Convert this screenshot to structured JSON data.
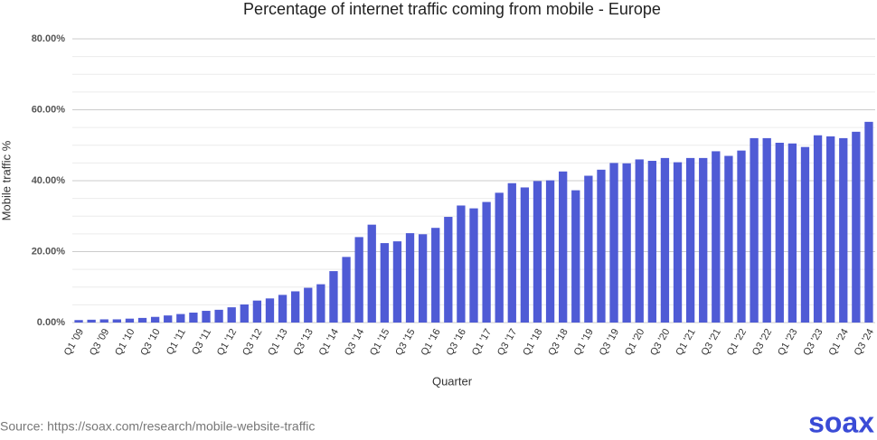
{
  "chart_data": {
    "type": "bar",
    "title": "Percentage of internet traffic coming from mobile - Europe",
    "x_label": "Quarter",
    "y_label": "Mobile traffic %",
    "categories": [
      "Q1 '09",
      null,
      "Q3 '09",
      null,
      "Q1 '10",
      null,
      "Q3 '10",
      null,
      "Q1 '11",
      null,
      "Q3 '11",
      null,
      "Q1 '12",
      null,
      "Q3 '12",
      null,
      "Q1 '13",
      null,
      "Q3 '13",
      null,
      "Q1 '14",
      null,
      "Q3 '14",
      null,
      "Q1 '15",
      null,
      "Q3 '15",
      null,
      "Q1 '16",
      null,
      "Q3 '16",
      null,
      "Q1 '17",
      null,
      "Q3 '17",
      null,
      "Q1 '18",
      null,
      "Q3 '18",
      null,
      "Q1 '19",
      null,
      "Q3 '19",
      null,
      "Q1 '20",
      null,
      "Q3 '20",
      null,
      "Q1 '21",
      null,
      "Q3 '21",
      null,
      "Q1 '22",
      null,
      "Q3 '22",
      null,
      "Q1 '23",
      null,
      "Q3 '23",
      null,
      "Q1 '24",
      null,
      "Q3 '24"
    ],
    "values": [
      0.7,
      0.8,
      0.9,
      0.9,
      1.1,
      1.3,
      1.6,
      2.0,
      2.4,
      2.8,
      3.3,
      3.6,
      4.3,
      5.1,
      6.2,
      6.8,
      7.8,
      8.8,
      9.8,
      10.8,
      14.5,
      18.5,
      24.1,
      27.6,
      22.4,
      22.9,
      25.2,
      24.9,
      26.7,
      29.8,
      33.0,
      32.2,
      34.0,
      36.6,
      39.3,
      38.1,
      39.9,
      40.1,
      42.6,
      37.3,
      41.4,
      43.1,
      45.0,
      44.9,
      46.0,
      45.6,
      46.4,
      45.2,
      46.4,
      46.4,
      48.3,
      47.0,
      48.5,
      52.0,
      52.0,
      50.7,
      50.5,
      49.5,
      52.8,
      52.5,
      52.0,
      53.8,
      56.6
    ],
    "color": "#4f5bd5",
    "ylim": [
      0,
      80
    ],
    "yticks": [
      {
        "value": 0,
        "label": "0.00%"
      },
      {
        "value": 20,
        "label": "20.00%"
      },
      {
        "value": 40,
        "label": "40.00%"
      },
      {
        "value": 60,
        "label": "60.00%"
      },
      {
        "value": 80,
        "label": "80.00%"
      }
    ],
    "yminorticks": [
      5,
      10,
      15,
      25,
      30,
      35,
      45,
      50,
      55,
      65,
      70,
      75
    ],
    "grid": true
  },
  "source": "Source: https://soax.com/research/mobile-website-traffic",
  "logo": "soax"
}
